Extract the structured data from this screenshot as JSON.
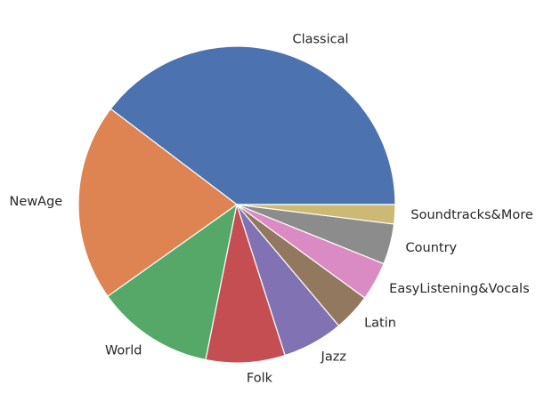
{
  "chart_data": {
    "type": "pie",
    "title": "",
    "start_angle_deg": 0,
    "direction": "counterclockwise",
    "labels": [
      "Classical",
      "NewAge",
      "World",
      "Folk",
      "Jazz",
      "Latin",
      "EasyListening&Vocals",
      "Country",
      "Soundtracks&More"
    ],
    "values": [
      40.3,
      20.5,
      12.2,
      8.2,
      6.3,
      3.9,
      4.0,
      4.2,
      2.0
    ],
    "colors": [
      "#4c72b0",
      "#dd8452",
      "#55a868",
      "#c44e52",
      "#8172b3",
      "#937860",
      "#da8bc3",
      "#8c8c8c",
      "#ccb974"
    ]
  }
}
